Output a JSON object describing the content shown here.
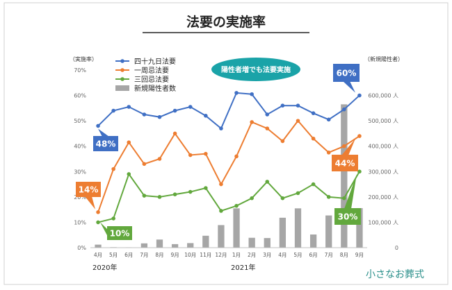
{
  "chart_data": {
    "type": "line",
    "title": "法要の実施率",
    "left_axis_label": "（実施率）",
    "right_axis_label": "（新規陽性者）",
    "categories": [
      "4月",
      "5月",
      "6月",
      "7月",
      "8月",
      "9月",
      "10月",
      "11月",
      "12月",
      "1月",
      "2月",
      "3月",
      "4月",
      "5月",
      "6月",
      "7月",
      "8月",
      "9月"
    ],
    "year_labels": [
      {
        "text": "2020年",
        "category_index": 0
      },
      {
        "text": "2021年",
        "category_index": 9
      }
    ],
    "left_axis": {
      "min": 0,
      "max": 70,
      "step": 10,
      "tick_labels": [
        "0%",
        "10%",
        "20%",
        "30%",
        "40%",
        "50%",
        "60%",
        "70%"
      ]
    },
    "right_axis": {
      "min": 0,
      "max": 700000,
      "step": 100000,
      "tick_labels": [
        "0",
        "100,000 人",
        "200,000 人",
        "300,000 人",
        "400,000 人",
        "500,000 人",
        "600,000 人"
      ]
    },
    "legend": {
      "placement": "top-left",
      "entries": [
        {
          "label": "四十九日法要",
          "color": "#3f6fc4",
          "kind": "line"
        },
        {
          "label": "一周忌法要",
          "color": "#ed7d31",
          "kind": "line"
        },
        {
          "label": "三回忌法要",
          "color": "#62a83d",
          "kind": "line"
        },
        {
          "label": "新規陽性者数",
          "color": "#a6a6a6",
          "kind": "bar"
        }
      ]
    },
    "series": [
      {
        "name": "四十九日法要",
        "color": "#3f6fc4",
        "values": [
          48,
          54,
          55.5,
          52.5,
          51.5,
          54,
          55.5,
          52,
          47,
          61,
          60.5,
          52.5,
          56,
          56,
          53,
          50.5,
          54.5,
          60
        ]
      },
      {
        "name": "一周忌法要",
        "color": "#ed7d31",
        "values": [
          14,
          31,
          41.5,
          33,
          35,
          45,
          36.5,
          37,
          25,
          36,
          49.5,
          47,
          42,
          50,
          43,
          37.5,
          40,
          44
        ]
      },
      {
        "name": "三回忌法要",
        "color": "#62a83d",
        "values": [
          10,
          11.5,
          29,
          20.5,
          20,
          21,
          22,
          23.5,
          14.5,
          16.5,
          19.5,
          26,
          19.5,
          21.5,
          25,
          20,
          19.5,
          30
        ]
      }
    ],
    "bars": {
      "name": "新規陽性者数",
      "color": "#a6a6a6",
      "values": [
        12000,
        2000,
        1500,
        17000,
        32000,
        14000,
        18000,
        47000,
        89000,
        155000,
        39000,
        38000,
        118000,
        155000,
        52000,
        127000,
        565000,
        156000
      ]
    },
    "callouts": [
      {
        "text": "48%",
        "color": "#3f6fc4"
      },
      {
        "text": "14%",
        "color": "#ed7d31"
      },
      {
        "text": "10%",
        "color": "#62a83d"
      },
      {
        "text": "60%",
        "color": "#3f6fc4"
      },
      {
        "text": "44%",
        "color": "#ed7d31"
      },
      {
        "text": "30%",
        "color": "#62a83d"
      }
    ],
    "annotation": {
      "text": "陽性者増でも法要実施",
      "color": "#1aa3a8"
    },
    "grid": false
  },
  "brand": {
    "text": "小さなお葬式",
    "color": "#2a8f8a"
  }
}
